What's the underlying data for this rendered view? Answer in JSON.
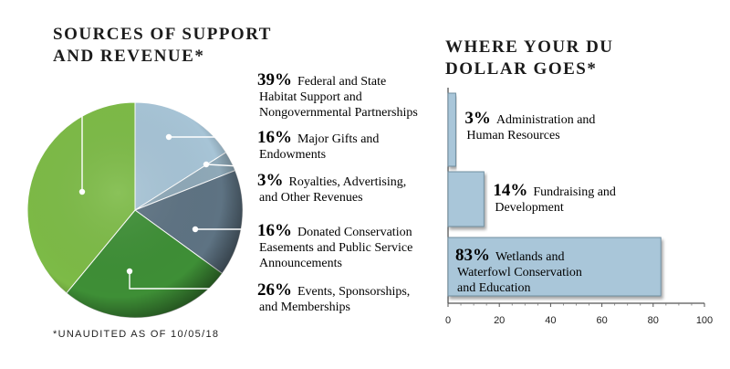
{
  "footnote": "*UNAUDITED AS OF 10/05/18",
  "colors": {
    "pie": [
      "#7dbb47",
      "#a7c4d6",
      "#8fa9b8",
      "#5e7383",
      "#3e8f36"
    ],
    "bar_fill": "#a9c6d9",
    "bar_stroke": "#6f8ea0",
    "leader": "#ffffff"
  },
  "chart_data": [
    {
      "type": "pie",
      "title_lines": [
        "SOURCES OF SUPPORT",
        "AND REVENUE*"
      ],
      "slices": [
        {
          "pct_label": "39%",
          "value": 39,
          "label_lines": [
            "Federal and State",
            "Habitat Support and",
            "Nongovernmental Partnerships"
          ]
        },
        {
          "pct_label": "16%",
          "value": 16,
          "label_lines": [
            "Major Gifts and",
            "Endowments"
          ]
        },
        {
          "pct_label": "3%",
          "value": 3,
          "label_lines": [
            "Royalties, Advertising,",
            "and Other Revenues"
          ]
        },
        {
          "pct_label": "16%",
          "value": 16,
          "label_lines": [
            "Donated Conservation",
            "Easements and Public Service",
            "Announcements"
          ]
        },
        {
          "pct_label": "26%",
          "value": 26,
          "label_lines": [
            "Events, Sponsorships,",
            "and Memberships"
          ]
        }
      ]
    },
    {
      "type": "bar",
      "orientation": "horizontal",
      "title_lines": [
        "WHERE YOUR DU",
        "DOLLAR GOES*"
      ],
      "bars": [
        {
          "pct_label": "3%",
          "value": 3,
          "label_lines": [
            "Administration and",
            "Human Resources"
          ]
        },
        {
          "pct_label": "14%",
          "value": 14,
          "label_lines": [
            "Fundraising and",
            "Development"
          ]
        },
        {
          "pct_label": "83%",
          "value": 83,
          "label_lines": [
            "Wetlands and",
            "Waterfowl Conservation",
            "and Education"
          ]
        }
      ],
      "xlim": [
        0,
        100
      ],
      "ticks": [
        "0",
        "20",
        "40",
        "60",
        "80",
        "100"
      ]
    }
  ]
}
